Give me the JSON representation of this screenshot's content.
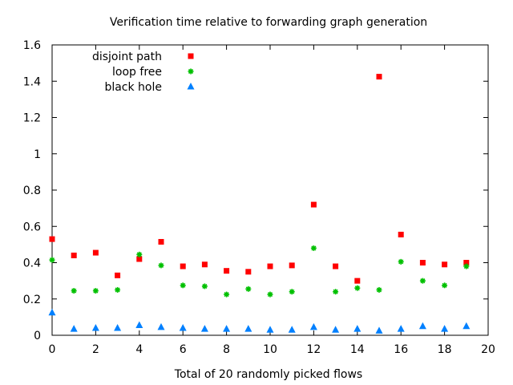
{
  "chart_data": {
    "type": "scatter",
    "title": "Verification time relative to forwarding graph generation",
    "xlabel": "Total of 20 randomly picked flows",
    "ylabel": "",
    "xlim": [
      0,
      20
    ],
    "ylim": [
      0,
      1.6
    ],
    "x_ticks": [
      "0",
      "2",
      "4",
      "6",
      "8",
      "10",
      "12",
      "14",
      "16",
      "18",
      "20"
    ],
    "y_ticks": [
      "0",
      "0.2",
      "0.4",
      "0.6",
      "0.8",
      "1",
      "1.2",
      "1.4",
      "1.6"
    ],
    "legend_position": "top-left",
    "series": [
      {
        "name": "disjoint path",
        "marker": "square",
        "color": "#ff0000",
        "x": [
          0,
          1,
          2,
          3,
          4,
          5,
          6,
          7,
          8,
          9,
          10,
          11,
          12,
          13,
          14,
          15,
          16,
          17,
          18,
          19
        ],
        "values": [
          0.53,
          0.44,
          0.455,
          0.33,
          0.42,
          0.515,
          0.38,
          0.39,
          0.355,
          0.35,
          0.38,
          0.385,
          0.72,
          0.38,
          0.3,
          1.425,
          0.555,
          0.4,
          0.39,
          0.4
        ]
      },
      {
        "name": "loop free",
        "marker": "star",
        "color": "#00c000",
        "x": [
          0,
          1,
          2,
          3,
          4,
          5,
          6,
          7,
          8,
          9,
          10,
          11,
          12,
          13,
          14,
          15,
          16,
          17,
          18,
          19
        ],
        "values": [
          0.415,
          0.245,
          0.245,
          0.25,
          0.445,
          0.385,
          0.275,
          0.27,
          0.225,
          0.255,
          0.225,
          0.24,
          0.48,
          0.24,
          0.26,
          0.25,
          0.405,
          0.3,
          0.275,
          0.38
        ]
      },
      {
        "name": "black hole",
        "marker": "triangle",
        "color": "#0080ff",
        "x": [
          0,
          1,
          2,
          3,
          4,
          5,
          6,
          7,
          8,
          9,
          10,
          11,
          12,
          13,
          14,
          15,
          16,
          17,
          18,
          19
        ],
        "values": [
          0.125,
          0.035,
          0.04,
          0.04,
          0.055,
          0.045,
          0.04,
          0.035,
          0.035,
          0.035,
          0.03,
          0.03,
          0.045,
          0.03,
          0.035,
          0.025,
          0.035,
          0.05,
          0.035,
          0.05
        ]
      }
    ]
  }
}
